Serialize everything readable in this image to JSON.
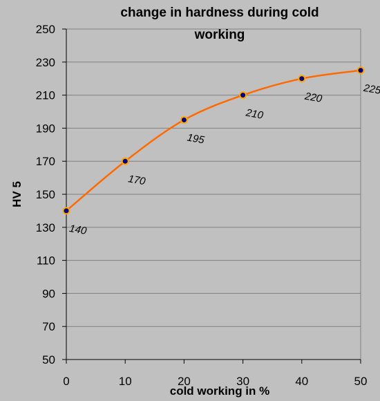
{
  "chart_data": {
    "type": "line",
    "title_lines": [
      "change in hardness during cold",
      "working"
    ],
    "xlabel": "cold working in %",
    "ylabel": "HV 5",
    "x": [
      0,
      10,
      20,
      30,
      40,
      50
    ],
    "xticks": [
      "0",
      "10",
      "20",
      "30",
      "40",
      "50"
    ],
    "xlim": [
      0,
      50
    ],
    "ylim": [
      50,
      250
    ],
    "yticks": [
      "50",
      "70",
      "90",
      "110",
      "130",
      "150",
      "170",
      "190",
      "210",
      "230",
      "250"
    ],
    "series": [
      {
        "values": [
          140,
          170,
          195,
          210,
          220,
          225
        ],
        "data_labels": [
          "140",
          "170",
          "195",
          "210",
          "220",
          "225"
        ],
        "line_color": "#ff6a00",
        "marker_fill": "#000080",
        "marker_edge": "#ffa500"
      }
    ],
    "grid": "horizontal",
    "legend": "none",
    "background_color": "#c0c0c0",
    "plot_background_color": "#c0c0c0",
    "gridline_color": "#808080"
  }
}
